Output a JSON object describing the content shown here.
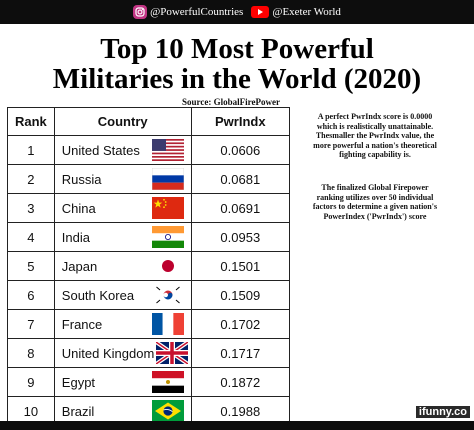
{
  "header": {
    "instagram_handle": "@PowerfulCountries",
    "youtube_handle": "@Exeter World",
    "instagram_icon": "instagram-icon",
    "youtube_icon": "youtube-icon"
  },
  "title_line1": "Top 10 Most Powerful",
  "title_line2": "Militaries in the World (2020)",
  "source": "Source: GlobalFirePower",
  "table": {
    "headers": {
      "rank": "Rank",
      "country": "Country",
      "score": "PwrIndx"
    },
    "rows": [
      {
        "rank": "1",
        "country": "United States",
        "score": "0.0606",
        "flag": "usa-flag"
      },
      {
        "rank": "2",
        "country": "Russia",
        "score": "0.0681",
        "flag": "russia-flag"
      },
      {
        "rank": "3",
        "country": "China",
        "score": "0.0691",
        "flag": "china-flag"
      },
      {
        "rank": "4",
        "country": "India",
        "score": "0.0953",
        "flag": "india-flag"
      },
      {
        "rank": "5",
        "country": "Japan",
        "score": "0.1501",
        "flag": "japan-flag"
      },
      {
        "rank": "6",
        "country": "South Korea",
        "score": "0.1509",
        "flag": "south-korea-flag"
      },
      {
        "rank": "7",
        "country": "France",
        "score": "0.1702",
        "flag": "france-flag"
      },
      {
        "rank": "8",
        "country": "United Kingdom",
        "score": "0.1717",
        "flag": "uk-flag"
      },
      {
        "rank": "9",
        "country": "Egypt",
        "score": "0.1872",
        "flag": "egypt-flag"
      },
      {
        "rank": "10",
        "country": "Brazil",
        "score": "0.1988",
        "flag": "brazil-flag"
      }
    ]
  },
  "note1": "A perfect PwrIndx score is 0.0000 which is realistically unattainable. Thesmaller the PwrIndx value, the more powerful a nation's theoretical fighting capability is.",
  "note2": "The finalized Global Firepower ranking utilizes over 50 individual factors to determine a given nation's PowerIndex ('PwrIndx') score",
  "watermark": "ifunny.co"
}
